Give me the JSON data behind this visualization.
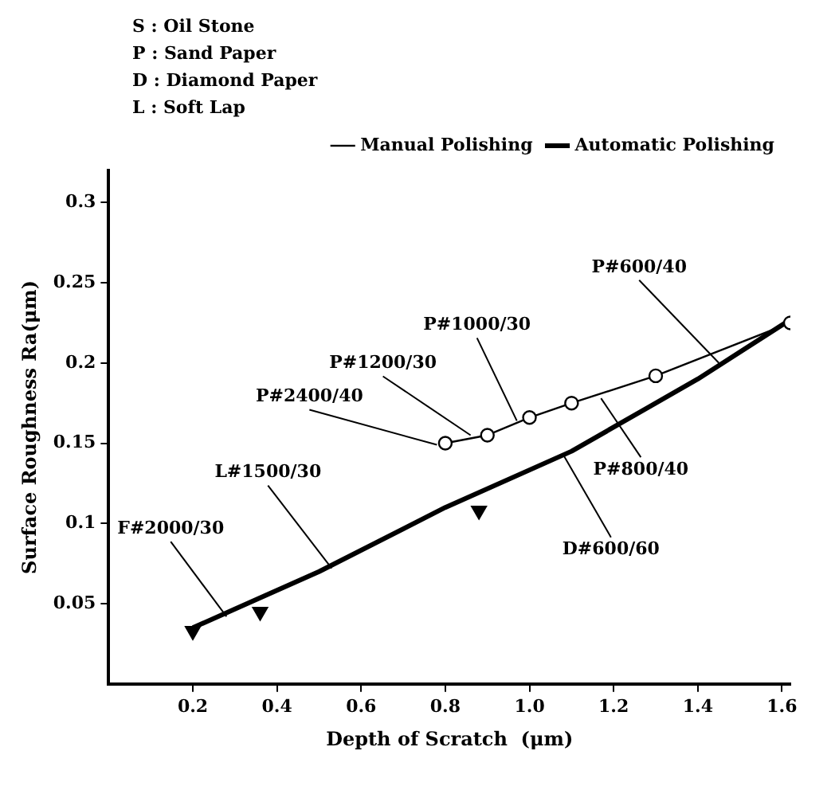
{
  "chart_data": {
    "type": "line",
    "xlabel": "Depth of Scratch  (μm)",
    "ylabel": "Surface Roughness Ra(μm)",
    "xlim": [
      0,
      1.62
    ],
    "xticks": [
      0.2,
      0.4,
      0.6,
      0.8,
      {
        "value": 1,
        "label": "1.0"
      },
      1.2,
      1.4,
      1.6
    ],
    "ylim": [
      0,
      0.32
    ],
    "yticks": [
      0.05,
      0.1,
      0.15,
      0.2,
      0.25,
      0.3
    ],
    "grid": false,
    "legend": "top right",
    "line_style": "solid",
    "series": [
      {
        "name": "Manual Polishing",
        "color": "#000000",
        "marker": "circle",
        "x": [
          0.8,
          0.9,
          1.0,
          1.1,
          1.3,
          1.62
        ],
        "values": [
          0.15,
          0.155,
          0.166,
          0.175,
          0.192,
          0.225
        ]
      },
      {
        "name": "Automatic Polishing",
        "color": "#000000",
        "marker": "none",
        "x": [
          0.2,
          0.5,
          0.8,
          1.1,
          1.4,
          1.62
        ],
        "values": [
          0.035,
          0.07,
          0.11,
          0.145,
          0.19,
          0.227
        ]
      },
      {
        "type": "scatter",
        "color": "#000000",
        "marker": "triangle",
        "x": [
          0.2,
          0.36,
          0.88
        ],
        "values": [
          0.033,
          0.045,
          0.108
        ]
      }
    ],
    "annotations": [
      "S : Oil Stone",
      "P : Sand Paper",
      "D : Diamond Paper",
      "L : Soft Lap",
      {
        "text": "P#600/40",
        "x": 1.45,
        "y": 0.2
      },
      {
        "text": "P#1000/30",
        "x": 0.97,
        "y": 0.164
      },
      {
        "text": "P#1200/30",
        "x": 0.86,
        "y": 0.155
      },
      {
        "text": "P#2400/40",
        "x": 0.78,
        "y": 0.149
      },
      {
        "text": "P#800/40",
        "x": 1.17,
        "y": 0.178
      },
      {
        "text": "D#600/60",
        "x": 1.08,
        "y": 0.143
      },
      {
        "text": "L#1500/30",
        "x": 0.53,
        "y": 0.072
      },
      {
        "text": "F#2000/30",
        "x": 0.28,
        "y": 0.042
      }
    ]
  }
}
